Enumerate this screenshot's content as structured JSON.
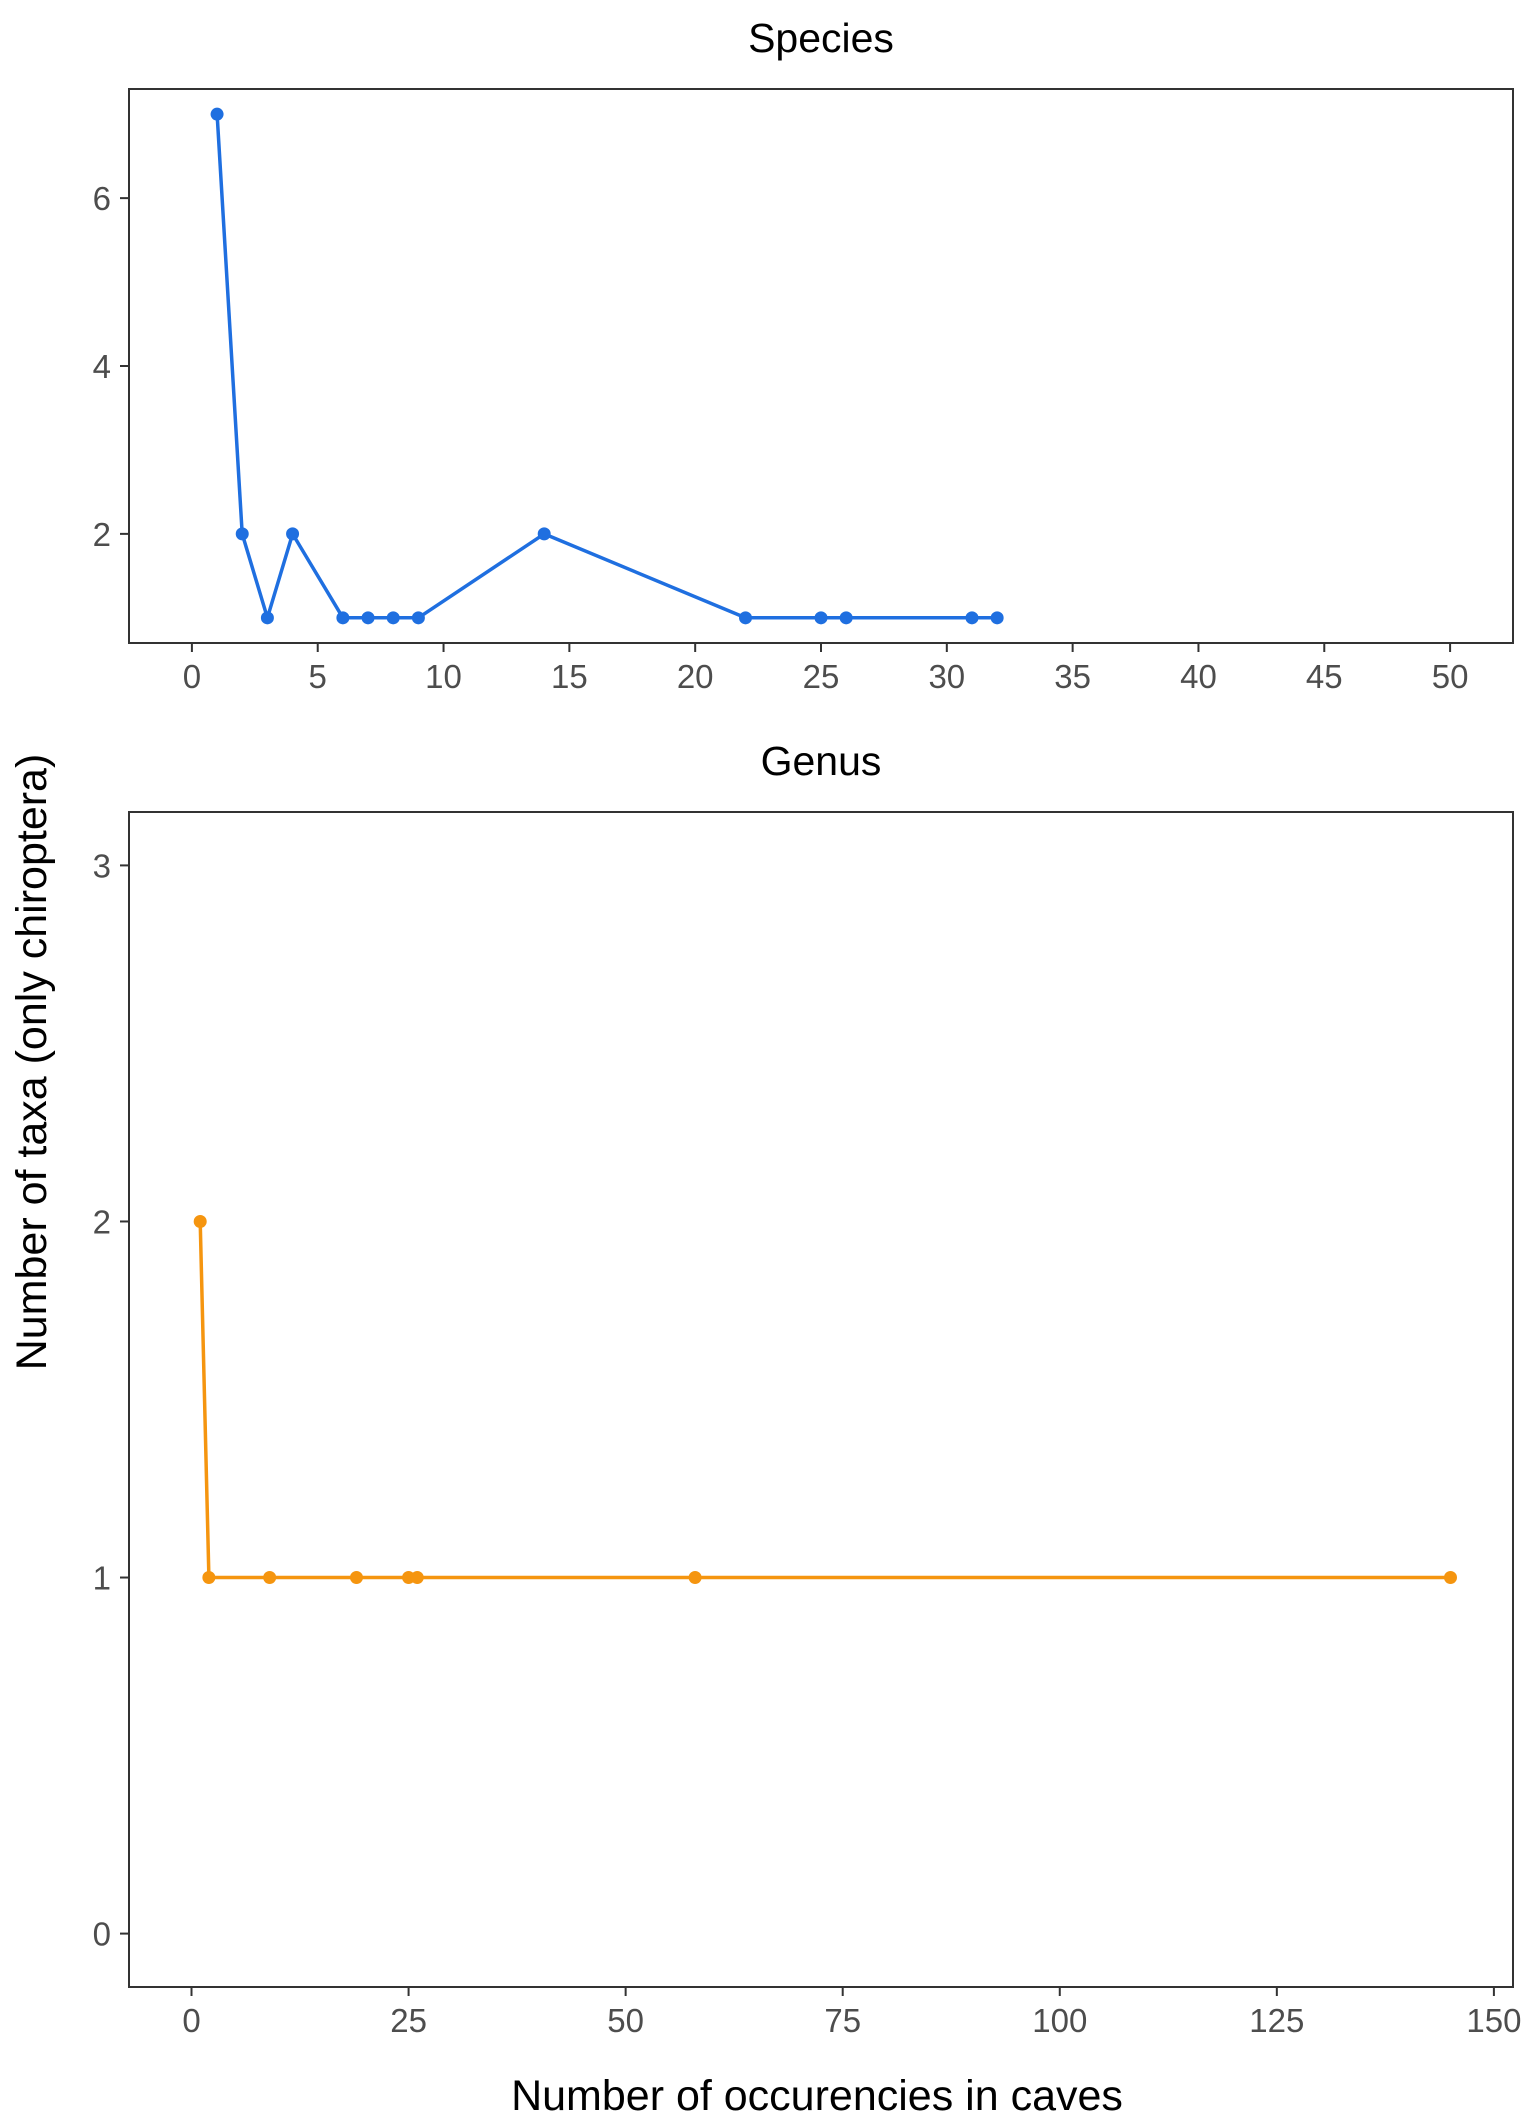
{
  "figure": {
    "shared_ylabel": "Number of taxa (only chiroptera)",
    "shared_xlabel": "Number of occurencies in caves"
  },
  "chart_data": [
    {
      "type": "line",
      "title": "Species",
      "xlabel": "",
      "ylabel": "",
      "xlim": [
        -2.5,
        52.5
      ],
      "ylim": [
        0.7,
        7.3
      ],
      "xticks": [
        0,
        5,
        10,
        15,
        20,
        25,
        30,
        35,
        40,
        45,
        50
      ],
      "yticks": [
        2,
        4,
        6
      ],
      "grid": false,
      "color": "#1f6fe0",
      "series": [
        {
          "x": [
            1,
            2,
            3,
            4,
            6,
            7,
            8,
            9,
            14,
            22,
            25,
            26,
            31,
            32
          ],
          "values": [
            7,
            2,
            1,
            2,
            1,
            1,
            1,
            1,
            2,
            1,
            1,
            1,
            1,
            1
          ]
        }
      ]
    },
    {
      "type": "line",
      "title": "Genus",
      "xlabel": "",
      "ylabel": "",
      "xlim": [
        -7.2,
        152.2
      ],
      "ylim": [
        -0.15,
        3.15
      ],
      "xticks": [
        0,
        25,
        50,
        75,
        100,
        125,
        150
      ],
      "yticks": [
        0,
        1,
        2,
        3
      ],
      "grid": false,
      "color": "#f5950f",
      "series": [
        {
          "x": [
            1,
            2,
            9,
            19,
            25,
            26,
            58,
            145
          ],
          "values": [
            2,
            1,
            1,
            1,
            1,
            1,
            1,
            1
          ]
        }
      ]
    }
  ]
}
